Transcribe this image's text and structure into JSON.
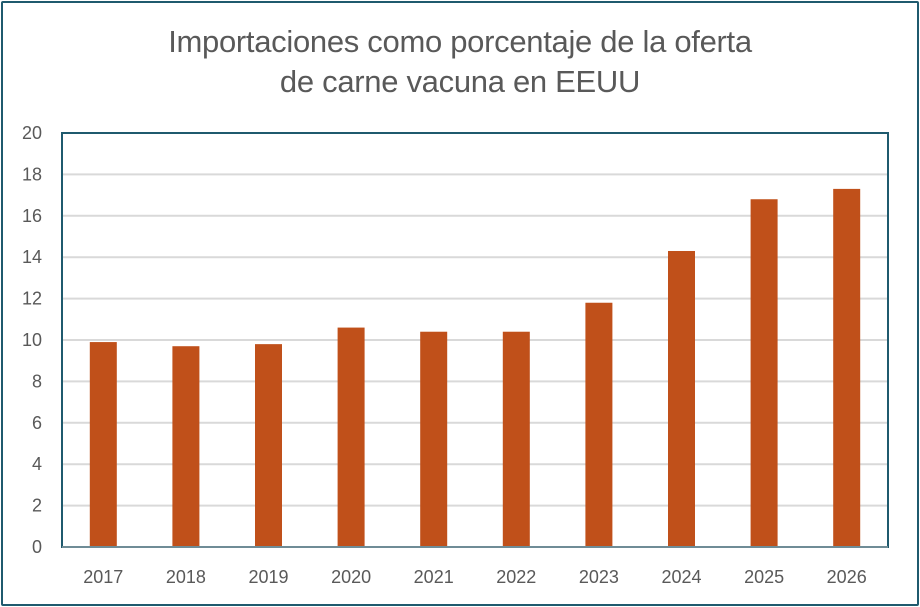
{
  "chart_data": {
    "type": "bar",
    "title_lines": [
      "Importaciones como porcentaje de la oferta",
      "de carne vacuna en EEUU"
    ],
    "categories": [
      "2017",
      "2018",
      "2019",
      "2020",
      "2021",
      "2022",
      "2023",
      "2024",
      "2025",
      "2026"
    ],
    "values": [
      9.9,
      9.7,
      9.8,
      10.6,
      10.4,
      10.4,
      11.8,
      14.3,
      16.8,
      17.3
    ],
    "ylim": [
      0,
      20
    ],
    "yticks": [
      0,
      2,
      4,
      6,
      8,
      10,
      12,
      14,
      16,
      18,
      20
    ],
    "xlabel": "",
    "ylabel": "",
    "grid": true,
    "colors": {
      "bar": "#c0501a",
      "grid": "#d9d9d9",
      "plot_border": "#1f5a6e",
      "frame": "#1f5a6e",
      "text": "#595959"
    }
  }
}
